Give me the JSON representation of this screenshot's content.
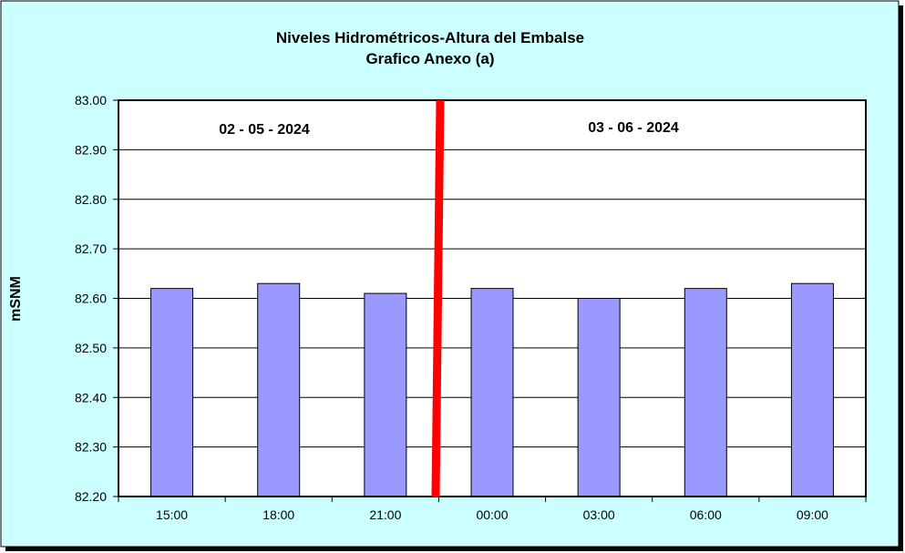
{
  "chart_data": {
    "type": "bar",
    "title": "Niveles Hidrométricos-Altura del Embalse",
    "subtitle": "Grafico Anexo (a)",
    "xlabel": "",
    "ylabel": "mSNM",
    "categories": [
      "15:00",
      "18:00",
      "21:00",
      "00:00",
      "03:00",
      "06:00",
      "09:00"
    ],
    "values": [
      82.62,
      82.63,
      82.61,
      82.62,
      82.6,
      82.62,
      82.63
    ],
    "ylim": [
      82.2,
      83.0
    ],
    "yticks": [
      "82.20",
      "82.30",
      "82.40",
      "82.50",
      "82.60",
      "82.70",
      "82.80",
      "82.90",
      "83.00"
    ],
    "grid": true,
    "legend": "none",
    "annotations": {
      "date_left": "02 - 05 - 2024",
      "date_right": "03 - 06 - 2024"
    },
    "colors": {
      "background": "#ccffff",
      "plot_area": "#ffffff",
      "bar": "#9999ff",
      "divider": "#ff0000"
    }
  }
}
